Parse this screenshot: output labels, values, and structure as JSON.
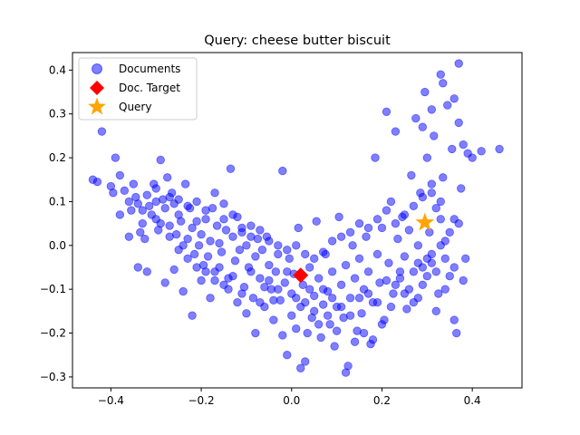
{
  "chart_data": {
    "type": "scatter",
    "title": "Query: cheese butter biscuit",
    "xlabel": "",
    "ylabel": "",
    "xlim": [
      -0.485,
      0.51
    ],
    "ylim": [
      -0.325,
      0.44
    ],
    "xticks": [
      -0.4,
      -0.2,
      0.0,
      0.2,
      0.4
    ],
    "xtick_labels": [
      "−0.4",
      "−0.2",
      "0.0",
      "0.2",
      "0.4"
    ],
    "yticks": [
      -0.3,
      -0.2,
      -0.1,
      0.0,
      0.1,
      0.2,
      0.3,
      0.4
    ],
    "ytick_labels": [
      "−0.3",
      "−0.2",
      "−0.1",
      "0.0",
      "0.1",
      "0.2",
      "0.3",
      "0.4"
    ],
    "grid": false,
    "legend_position": "top-left",
    "series": [
      {
        "name": "Documents",
        "marker": "circle",
        "color": "#0000ff",
        "points": [
          [
            -0.44,
            0.15
          ],
          [
            -0.43,
            0.145
          ],
          [
            -0.42,
            0.26
          ],
          [
            -0.4,
            0.135
          ],
          [
            -0.395,
            0.12
          ],
          [
            -0.39,
            0.2
          ],
          [
            -0.38,
            0.16
          ],
          [
            -0.37,
            0.125
          ],
          [
            -0.36,
            0.1
          ],
          [
            -0.355,
            0.08
          ],
          [
            -0.35,
            0.14
          ],
          [
            -0.345,
            0.11
          ],
          [
            -0.34,
            0.095
          ],
          [
            -0.335,
            0.03
          ],
          [
            -0.33,
            0.05
          ],
          [
            -0.325,
            0.015
          ],
          [
            -0.32,
            0.115
          ],
          [
            -0.315,
            0.09
          ],
          [
            -0.31,
            0.07
          ],
          [
            -0.305,
            0.14
          ],
          [
            -0.3,
            0.13
          ],
          [
            -0.3,
            0.06
          ],
          [
            -0.295,
            0.035
          ],
          [
            -0.29,
            0.195
          ],
          [
            -0.285,
            0.105
          ],
          [
            -0.28,
            0.085
          ],
          [
            -0.275,
            0.155
          ],
          [
            -0.27,
            0.045
          ],
          [
            -0.265,
            0.12
          ],
          [
            -0.26,
            0.095
          ],
          [
            -0.255,
            0.025
          ],
          [
            -0.25,
            0.07
          ],
          [
            -0.245,
            0.055
          ],
          [
            -0.24,
            0.0
          ],
          [
            -0.235,
            0.14
          ],
          [
            -0.23,
            0.015
          ],
          [
            -0.225,
            0.085
          ],
          [
            -0.22,
            0.04
          ],
          [
            -0.215,
            -0.02
          ],
          [
            -0.21,
            0.055
          ],
          [
            -0.205,
            0.0
          ],
          [
            -0.2,
            0.025
          ],
          [
            -0.195,
            -0.045
          ],
          [
            -0.19,
            0.06
          ],
          [
            -0.185,
            -0.025
          ],
          [
            -0.18,
            0.01
          ],
          [
            -0.175,
            0.085
          ],
          [
            -0.17,
            -0.06
          ],
          [
            -0.165,
            0.045
          ],
          [
            -0.16,
            0.005
          ],
          [
            -0.155,
            -0.015
          ],
          [
            -0.15,
            0.095
          ],
          [
            -0.145,
            0.035
          ],
          [
            -0.14,
            -0.075
          ],
          [
            -0.135,
            0.175
          ],
          [
            -0.13,
            0.02
          ],
          [
            -0.125,
            -0.035
          ],
          [
            -0.12,
            0.065
          ],
          [
            -0.115,
            -0.01
          ],
          [
            -0.11,
            0.03
          ],
          [
            -0.105,
            -0.095
          ],
          [
            -0.1,
            0.0
          ],
          [
            -0.095,
            -0.05
          ],
          [
            -0.09,
            0.045
          ],
          [
            -0.085,
            -0.12
          ],
          [
            -0.08,
            -0.025
          ],
          [
            -0.075,
            0.015
          ],
          [
            -0.07,
            -0.075
          ],
          [
            -0.065,
            -0.01
          ],
          [
            -0.06,
            -0.14
          ],
          [
            -0.055,
            0.02
          ],
          [
            -0.05,
            -0.045
          ],
          [
            -0.045,
            -0.1
          ],
          [
            -0.04,
            -0.17
          ],
          [
            -0.035,
            -0.06
          ],
          [
            -0.03,
            -0.02
          ],
          [
            -0.025,
            -0.125
          ],
          [
            -0.02,
            0.17
          ],
          [
            -0.015,
            -0.085
          ],
          [
            -0.01,
            -0.25
          ],
          [
            -0.005,
            -0.03
          ],
          [
            0.0,
            -0.11
          ],
          [
            0.005,
            -0.065
          ],
          [
            0.01,
            -0.19
          ],
          [
            0.015,
            0.04
          ],
          [
            0.02,
            -0.14
          ],
          [
            0.025,
            -0.09
          ],
          [
            0.03,
            -0.265
          ],
          [
            0.035,
            -0.2
          ],
          [
            0.04,
            -0.05
          ],
          [
            0.045,
            -0.165
          ],
          [
            0.05,
            -0.115
          ],
          [
            0.055,
            0.055
          ],
          [
            0.06,
            -0.075
          ],
          [
            0.065,
            -0.21
          ],
          [
            0.07,
            -0.135
          ],
          [
            0.075,
            -0.02
          ],
          [
            0.08,
            -0.105
          ],
          [
            0.085,
            -0.18
          ],
          [
            0.09,
            -0.06
          ],
          [
            0.095,
            -0.23
          ],
          [
            0.1,
            -0.14
          ],
          [
            0.105,
            0.065
          ],
          [
            0.11,
            -0.09
          ],
          [
            0.115,
            -0.165
          ],
          [
            0.12,
            -0.045
          ],
          [
            0.125,
            -0.275
          ],
          [
            0.13,
            -0.12
          ],
          [
            0.135,
            0.0
          ],
          [
            0.14,
            -0.075
          ],
          [
            0.145,
            -0.195
          ],
          [
            0.15,
            -0.03
          ],
          [
            0.155,
            -0.155
          ],
          [
            0.16,
            -0.1
          ],
          [
            0.165,
            0.02
          ],
          [
            0.17,
            -0.06
          ],
          [
            0.175,
            -0.225
          ],
          [
            0.18,
            -0.13
          ],
          [
            0.185,
            0.2
          ],
          [
            0.19,
            -0.02
          ],
          [
            0.195,
            -0.085
          ],
          [
            0.2,
            0.04
          ],
          [
            0.205,
            -0.17
          ],
          [
            0.21,
            0.305
          ],
          [
            0.215,
            -0.04
          ],
          [
            0.22,
            0.1
          ],
          [
            0.225,
            -0.11
          ],
          [
            0.23,
            0.26
          ],
          [
            0.235,
            0.015
          ],
          [
            0.24,
            -0.075
          ],
          [
            0.245,
            0.065
          ],
          [
            0.25,
            -0.025
          ],
          [
            0.255,
            -0.145
          ],
          [
            0.26,
            0.035
          ],
          [
            0.265,
            0.16
          ],
          [
            0.27,
            -0.06
          ],
          [
            0.275,
            0.29
          ],
          [
            0.28,
            0.0
          ],
          [
            0.285,
            0.12
          ],
          [
            0.29,
            -0.09
          ],
          [
            0.295,
            0.35
          ],
          [
            0.3,
            0.2
          ],
          [
            0.305,
            0.03
          ],
          [
            0.31,
            -0.04
          ],
          [
            0.315,
            0.25
          ],
          [
            0.32,
            0.085
          ],
          [
            0.325,
            -0.11
          ],
          [
            0.33,
            0.39
          ],
          [
            0.335,
            0.155
          ],
          [
            0.34,
            0.01
          ],
          [
            0.345,
            0.32
          ],
          [
            0.35,
            -0.07
          ],
          [
            0.355,
            0.22
          ],
          [
            0.36,
            0.06
          ],
          [
            0.365,
            -0.2
          ],
          [
            0.37,
            0.28
          ],
          [
            0.375,
            0.13
          ],
          [
            0.38,
            0.23
          ],
          [
            0.385,
            -0.03
          ],
          [
            0.39,
            0.21
          ],
          [
            0.4,
            0.2
          ],
          [
            0.42,
            0.215
          ],
          [
            0.46,
            0.22
          ],
          [
            0.37,
            0.415
          ],
          [
            0.335,
            0.37
          ],
          [
            0.31,
            0.31
          ],
          [
            0.29,
            0.27
          ],
          [
            0.36,
            0.335
          ],
          [
            -0.38,
            0.07
          ],
          [
            -0.36,
            0.02
          ],
          [
            -0.34,
            -0.05
          ],
          [
            -0.32,
            -0.06
          ],
          [
            -0.28,
            -0.085
          ],
          [
            -0.26,
            -0.055
          ],
          [
            -0.24,
            -0.105
          ],
          [
            -0.22,
            -0.16
          ],
          [
            -0.2,
            -0.08
          ],
          [
            -0.18,
            -0.12
          ],
          [
            -0.16,
            -0.05
          ],
          [
            -0.14,
            -0.1
          ],
          [
            -0.12,
            -0.13
          ],
          [
            -0.1,
            -0.155
          ],
          [
            -0.08,
            -0.2
          ],
          [
            -0.06,
            -0.095
          ],
          [
            -0.04,
            -0.125
          ],
          [
            -0.02,
            -0.205
          ],
          [
            0.0,
            -0.16
          ],
          [
            0.02,
            -0.28
          ],
          [
            0.04,
            -0.1
          ],
          [
            0.06,
            -0.18
          ],
          [
            0.08,
            -0.16
          ],
          [
            0.1,
            -0.195
          ],
          [
            0.12,
            -0.29
          ],
          [
            0.14,
            -0.22
          ],
          [
            0.16,
            -0.2
          ],
          [
            0.18,
            -0.215
          ],
          [
            0.2,
            -0.18
          ],
          [
            0.22,
            -0.14
          ],
          [
            0.24,
            -0.06
          ],
          [
            0.26,
            -0.1
          ],
          [
            0.28,
            -0.12
          ],
          [
            0.3,
            -0.07
          ],
          [
            0.32,
            -0.15
          ],
          [
            0.34,
            -0.1
          ],
          [
            0.36,
            -0.17
          ],
          [
            0.38,
            -0.08
          ],
          [
            0.33,
            0.06
          ],
          [
            0.31,
            0.14
          ],
          [
            -0.3,
            0.1
          ],
          [
            -0.27,
            0.11
          ],
          [
            -0.25,
            0.105
          ],
          [
            -0.23,
            0.09
          ],
          [
            -0.21,
            0.1
          ],
          [
            -0.19,
            0.08
          ],
          [
            -0.17,
            0.12
          ],
          [
            -0.15,
            0.06
          ],
          [
            -0.13,
            0.07
          ],
          [
            -0.11,
            0.04
          ],
          [
            -0.09,
            0.02
          ],
          [
            -0.07,
            0.035
          ],
          [
            -0.05,
            0.01
          ],
          [
            -0.03,
            0.0
          ],
          [
            -0.01,
            -0.01
          ],
          [
            0.01,
            0.0
          ],
          [
            0.03,
            -0.02
          ],
          [
            0.05,
            -0.03
          ],
          [
            0.07,
            -0.015
          ],
          [
            0.09,
            0.01
          ],
          [
            0.11,
            0.02
          ],
          [
            0.13,
            0.03
          ],
          [
            0.15,
            0.05
          ],
          [
            0.17,
            0.04
          ],
          [
            0.19,
            0.06
          ],
          [
            0.21,
            0.08
          ],
          [
            0.23,
            0.05
          ],
          [
            0.25,
            0.07
          ],
          [
            0.27,
            0.09
          ],
          [
            0.29,
            0.11
          ],
          [
            0.31,
            0.12
          ],
          [
            0.33,
            0.1
          ],
          [
            -0.33,
            0.08
          ],
          [
            -0.29,
            0.05
          ],
          [
            -0.27,
            0.02
          ],
          [
            -0.25,
            -0.01
          ],
          [
            -0.23,
            -0.03
          ],
          [
            -0.21,
            -0.05
          ],
          [
            -0.19,
            -0.06
          ],
          [
            -0.17,
            -0.08
          ],
          [
            -0.15,
            -0.09
          ],
          [
            -0.13,
            -0.07
          ],
          [
            -0.11,
            -0.11
          ],
          [
            -0.09,
            -0.06
          ],
          [
            -0.07,
            -0.13
          ],
          [
            -0.05,
            -0.08
          ],
          [
            -0.03,
            -0.1
          ],
          [
            -0.01,
            -0.06
          ],
          [
            0.01,
            -0.12
          ],
          [
            0.03,
            -0.13
          ],
          [
            0.05,
            -0.15
          ],
          [
            0.07,
            -0.1
          ],
          [
            0.09,
            -0.12
          ],
          [
            0.11,
            -0.14
          ],
          [
            0.13,
            -0.16
          ],
          [
            0.15,
            -0.12
          ],
          [
            0.17,
            -0.11
          ],
          [
            0.19,
            -0.13
          ],
          [
            0.21,
            -0.08
          ],
          [
            0.23,
            -0.09
          ],
          [
            0.25,
            -0.11
          ],
          [
            0.27,
            -0.13
          ],
          [
            0.29,
            -0.05
          ],
          [
            0.31,
            -0.02
          ],
          [
            0.33,
            0.0
          ],
          [
            0.35,
            0.03
          ],
          [
            0.37,
            0.05
          ],
          [
            0.36,
            -0.05
          ],
          [
            0.34,
            -0.03
          ],
          [
            0.32,
            -0.06
          ],
          [
            0.3,
            -0.03
          ],
          [
            0.28,
            -0.04
          ]
        ]
      },
      {
        "name": "Doc. Target",
        "marker": "diamond",
        "color": "#ff0000",
        "points": [
          [
            0.02,
            -0.068
          ]
        ]
      },
      {
        "name": "Query",
        "marker": "star",
        "color": "#ffa500",
        "points": [
          [
            0.295,
            0.052
          ]
        ]
      }
    ]
  }
}
